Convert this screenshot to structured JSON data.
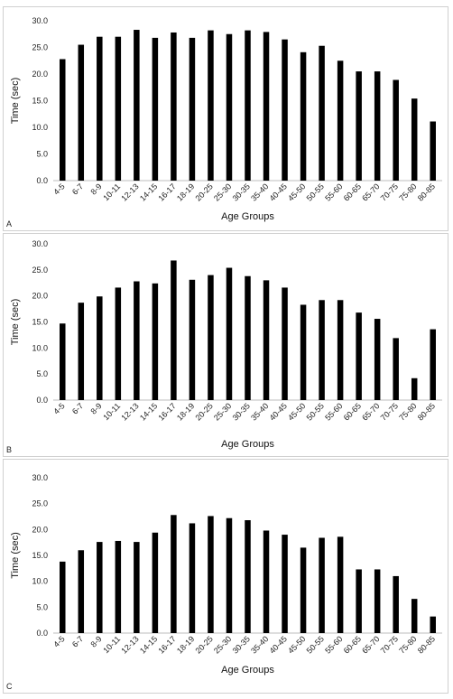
{
  "chart_data": [
    {
      "type": "bar",
      "panel_label": "A",
      "xlabel": "Age Groups",
      "ylabel": "Time (sec)",
      "ylim": [
        0,
        30
      ],
      "yticks": [
        "0.0",
        "5.0",
        "10.0",
        "15.0",
        "20.0",
        "25.0",
        "30.0"
      ],
      "grid": false,
      "bar_color": "#000000",
      "categories": [
        "4-5",
        "6-7",
        "8-9",
        "10-11",
        "12-13",
        "14-15",
        "16-17",
        "18-19",
        "20-25",
        "25-30",
        "30-35",
        "35-40",
        "40-45",
        "45-50",
        "50-55",
        "55-60",
        "60-65",
        "65-70",
        "70-75",
        "75-80",
        "80-85"
      ],
      "values": [
        22.8,
        25.5,
        27.0,
        27.0,
        28.3,
        26.8,
        27.8,
        26.8,
        28.2,
        27.5,
        28.2,
        27.9,
        26.5,
        24.1,
        25.3,
        22.5,
        20.5,
        20.5,
        18.9,
        15.4,
        11.1
      ]
    },
    {
      "type": "bar",
      "panel_label": "B",
      "xlabel": "Age Groups",
      "ylabel": "Time (sec)",
      "ylim": [
        0,
        30
      ],
      "yticks": [
        "0.0",
        "5.0",
        "10.0",
        "15.0",
        "20.0",
        "25.0",
        "30.0"
      ],
      "grid": false,
      "bar_color": "#000000",
      "categories": [
        "4-5",
        "6-7",
        "8-9",
        "10-11",
        "12-13",
        "14-15",
        "16-17",
        "18-19",
        "20-25",
        "25-30",
        "30-35",
        "35-40",
        "40-45",
        "45-50",
        "50-55",
        "55-60",
        "60-65",
        "65-70",
        "70-75",
        "75-80",
        "80-85"
      ],
      "values": [
        14.7,
        18.7,
        19.9,
        21.6,
        22.8,
        22.4,
        26.8,
        23.1,
        24.0,
        25.4,
        23.8,
        23.0,
        21.6,
        18.3,
        19.2,
        19.2,
        16.8,
        15.6,
        11.9,
        4.2,
        13.6
      ]
    },
    {
      "type": "bar",
      "panel_label": "C",
      "xlabel": "Age Groups",
      "ylabel": "Time (sec)",
      "ylim": [
        0,
        30
      ],
      "yticks": [
        "0.0",
        "5.0",
        "10.0",
        "15.0",
        "20.0",
        "25.0",
        "30.0"
      ],
      "grid": false,
      "bar_color": "#000000",
      "categories": [
        "4-5",
        "6-7",
        "8-9",
        "10-11",
        "12-13",
        "14-15",
        "16-17",
        "18-19",
        "20-25",
        "25-30",
        "30-35",
        "35-40",
        "40-45",
        "45-50",
        "50-55",
        "55-60",
        "60-65",
        "65-70",
        "70-75",
        "75-80",
        "80-85"
      ],
      "values": [
        13.8,
        16.0,
        17.6,
        17.8,
        17.6,
        19.4,
        22.8,
        21.2,
        22.6,
        22.2,
        21.8,
        19.8,
        19.0,
        16.5,
        18.4,
        18.6,
        12.3,
        12.3,
        11.0,
        6.6,
        3.2
      ]
    }
  ]
}
